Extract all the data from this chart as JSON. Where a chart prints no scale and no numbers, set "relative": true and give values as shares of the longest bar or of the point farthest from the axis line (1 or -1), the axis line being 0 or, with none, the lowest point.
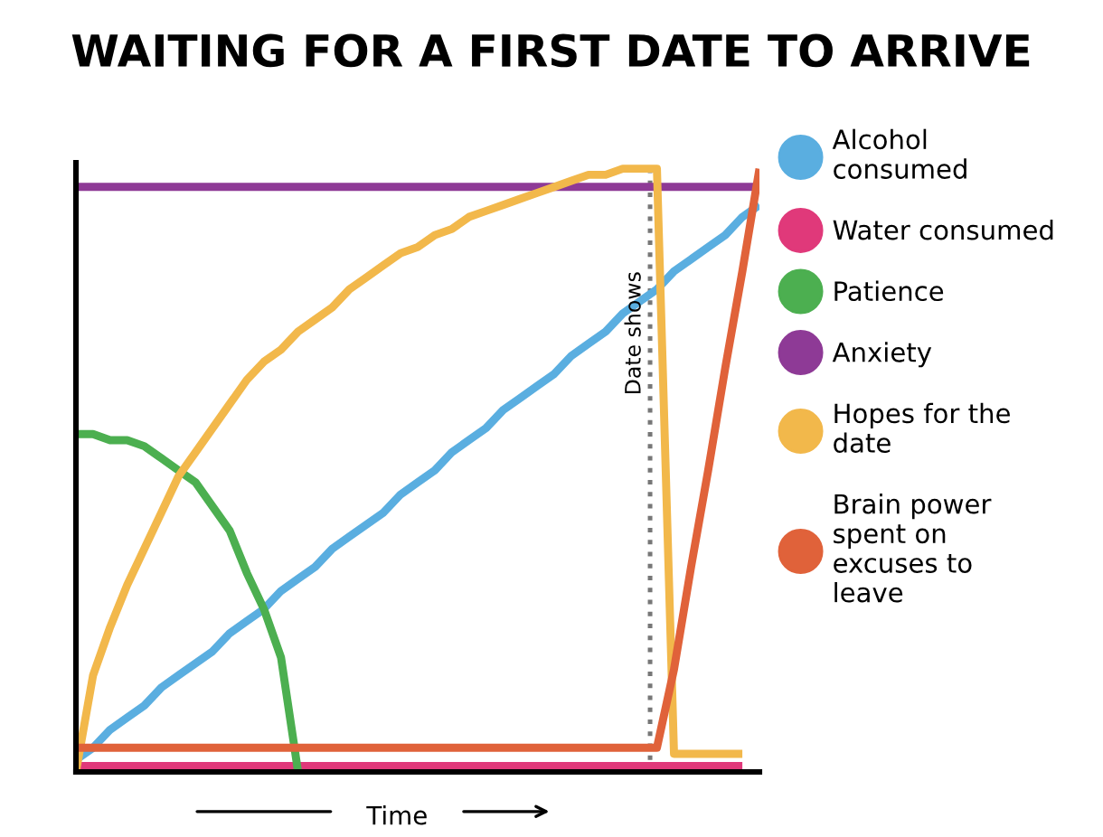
{
  "chart_data": {
    "type": "line",
    "title": "WAITING FOR A FIRST DATE TO ARRIVE",
    "xlabel": "Time",
    "relative": true,
    "legend": "right",
    "categories": [
      null,
      null,
      null,
      null,
      null,
      null,
      null,
      null,
      null,
      null,
      null,
      null,
      null,
      null,
      null,
      null,
      null,
      null,
      null,
      null,
      null,
      null,
      null,
      null,
      null,
      null,
      null,
      null,
      null,
      null,
      null,
      null,
      null,
      null,
      null,
      null,
      null,
      null,
      null,
      null,
      null
    ],
    "series": [
      {
        "name": "Alcohol consumed",
        "color": "#5aaee0",
        "values": [
          0.02,
          0.04,
          0.07,
          0.09,
          0.11,
          0.14,
          0.16,
          0.18,
          0.2,
          0.23,
          0.25,
          0.27,
          0.3,
          0.32,
          0.34,
          0.37,
          0.39,
          0.41,
          0.43,
          0.46,
          0.48,
          0.5,
          0.53,
          0.55,
          0.57,
          0.6,
          0.62,
          0.64,
          0.66,
          0.69,
          0.71,
          0.73,
          0.76,
          0.78,
          0.8,
          0.83,
          0.85,
          0.87,
          0.89,
          0.92,
          0.94
        ]
      },
      {
        "name": "Water consumed",
        "color": "#e0397a",
        "values": [
          0.01,
          0.01,
          0.01,
          0.01,
          0.01,
          0.01,
          0.01,
          0.01,
          0.01,
          0.01,
          0.01,
          0.01,
          0.01,
          0.01,
          0.01,
          0.01,
          0.01,
          0.01,
          0.01,
          0.01,
          0.01,
          0.01,
          0.01,
          0.01,
          0.01,
          0.01,
          0.01,
          0.01,
          0.01,
          0.01,
          0.01,
          0.01,
          0.01,
          0.01,
          0.01,
          0.01,
          0.01,
          0.01,
          0.01,
          0.01,
          null
        ]
      },
      {
        "name": "Patience",
        "color": "#4caf50",
        "values": [
          0.56,
          0.56,
          0.55,
          0.55,
          0.54,
          0.52,
          0.5,
          0.48,
          0.44,
          0.4,
          0.33,
          0.27,
          0.19,
          0,
          null,
          null,
          null,
          null,
          null,
          null,
          null,
          null,
          null,
          null,
          null,
          null,
          null,
          null,
          null,
          null,
          null,
          null,
          null,
          null,
          null,
          null,
          null,
          null,
          null,
          null,
          null
        ]
      },
      {
        "name": "Anxiety",
        "color": "#8e3a96",
        "values": [
          0.97,
          0.97,
          0.97,
          0.97,
          0.97,
          0.97,
          0.97,
          0.97,
          0.97,
          0.97,
          0.97,
          0.97,
          0.97,
          0.97,
          0.97,
          0.97,
          0.97,
          0.97,
          0.97,
          0.97,
          0.97,
          0.97,
          0.97,
          0.97,
          0.97,
          0.97,
          0.97,
          0.97,
          0.97,
          0.97,
          0.97,
          0.97,
          0.97,
          0.97,
          0.97,
          0.97,
          0.97,
          0.97,
          0.97,
          0.97,
          0.97
        ]
      },
      {
        "name": "Hopes for the date",
        "color": "#f2b84b",
        "values": [
          0,
          0.16,
          0.24,
          0.31,
          0.37,
          0.43,
          0.49,
          0.53,
          0.57,
          0.61,
          0.65,
          0.68,
          0.7,
          0.73,
          0.75,
          0.77,
          0.8,
          0.82,
          0.84,
          0.86,
          0.87,
          0.89,
          0.9,
          0.92,
          0.93,
          0.94,
          0.95,
          0.96,
          0.97,
          0.98,
          0.99,
          0.99,
          1.0,
          1.0,
          1.0,
          0.03,
          0.03,
          0.03,
          0.03,
          0.03,
          null
        ]
      },
      {
        "name": "Brain power spent on excuses to leave",
        "color": "#e0623a",
        "values": [
          0.04,
          0.04,
          0.04,
          0.04,
          0.04,
          0.04,
          0.04,
          0.04,
          0.04,
          0.04,
          0.04,
          0.04,
          0.04,
          0.04,
          0.04,
          0.04,
          0.04,
          0.04,
          0.04,
          0.04,
          0.04,
          0.04,
          0.04,
          0.04,
          0.04,
          0.04,
          0.04,
          0.04,
          0.04,
          0.04,
          0.04,
          0.04,
          0.04,
          0.04,
          0.04,
          0.17,
          0.34,
          0.5,
          0.67,
          0.83,
          1.0
        ]
      }
    ],
    "annotations": [
      "Date shows"
    ]
  }
}
